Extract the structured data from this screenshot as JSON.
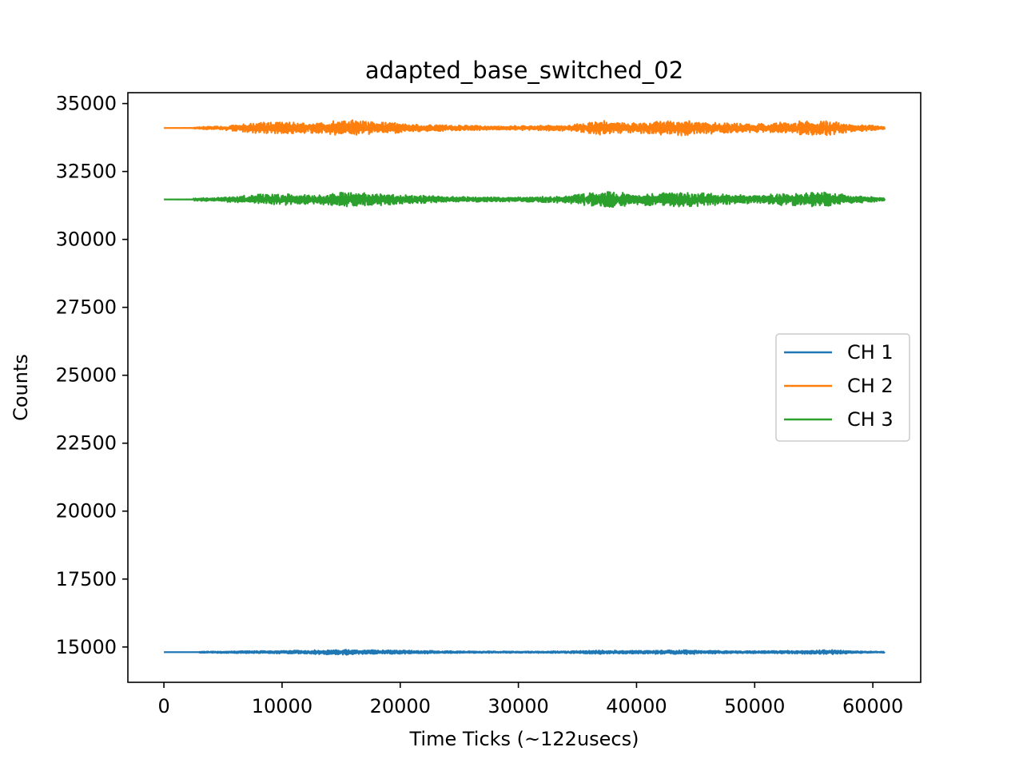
{
  "chart_data": {
    "type": "line",
    "title": "adapted_base_switched_02",
    "xlabel": "Time Ticks (~122usecs)",
    "ylabel": "Counts",
    "xlim": [
      -3050,
      64050
    ],
    "ylim": [
      13700,
      35400
    ],
    "xticks": [
      0,
      10000,
      20000,
      30000,
      40000,
      50000,
      60000
    ],
    "yticks": [
      15000,
      17500,
      20000,
      22500,
      25000,
      27500,
      30000,
      32500,
      35000
    ],
    "grid": false,
    "legend_position": "center-right",
    "series": [
      {
        "name": "CH 1",
        "color": "#1f77b4",
        "baseline": 14810,
        "x_range": [
          0,
          61000
        ],
        "quiet_until": 3000,
        "envelope": [
          [
            0,
            5
          ],
          [
            3000,
            20
          ],
          [
            8000,
            40
          ],
          [
            10000,
            45
          ],
          [
            15500,
            80
          ],
          [
            16500,
            70
          ],
          [
            20000,
            55
          ],
          [
            25000,
            30
          ],
          [
            30000,
            25
          ],
          [
            34000,
            30
          ],
          [
            37000,
            60
          ],
          [
            40000,
            45
          ],
          [
            44000,
            70
          ],
          [
            48000,
            35
          ],
          [
            52000,
            40
          ],
          [
            55000,
            60
          ],
          [
            56500,
            70
          ],
          [
            58000,
            40
          ],
          [
            61000,
            20
          ]
        ]
      },
      {
        "name": "CH 2",
        "color": "#ff7f0e",
        "baseline": 34100,
        "x_range": [
          0,
          61000
        ],
        "quiet_until": 2500,
        "envelope": [
          [
            0,
            5
          ],
          [
            2500,
            30
          ],
          [
            5000,
            60
          ],
          [
            8000,
            170
          ],
          [
            10000,
            190
          ],
          [
            13000,
            160
          ],
          [
            15500,
            260
          ],
          [
            16500,
            220
          ],
          [
            20000,
            150
          ],
          [
            24000,
            90
          ],
          [
            28000,
            60
          ],
          [
            30000,
            70
          ],
          [
            34000,
            90
          ],
          [
            37000,
            230
          ],
          [
            40000,
            160
          ],
          [
            44000,
            260
          ],
          [
            46000,
            200
          ],
          [
            50000,
            130
          ],
          [
            53000,
            190
          ],
          [
            56000,
            250
          ],
          [
            58000,
            130
          ],
          [
            61000,
            50
          ]
        ]
      },
      {
        "name": "CH 3",
        "color": "#2ca02c",
        "baseline": 31470,
        "x_range": [
          0,
          61000
        ],
        "quiet_until": 2500,
        "envelope": [
          [
            0,
            5
          ],
          [
            2500,
            40
          ],
          [
            5000,
            70
          ],
          [
            8000,
            160
          ],
          [
            10000,
            180
          ],
          [
            13000,
            150
          ],
          [
            15500,
            260
          ],
          [
            16500,
            220
          ],
          [
            20000,
            150
          ],
          [
            24000,
            90
          ],
          [
            28000,
            70
          ],
          [
            30000,
            70
          ],
          [
            34000,
            110
          ],
          [
            37500,
            260
          ],
          [
            40000,
            170
          ],
          [
            44000,
            250
          ],
          [
            46000,
            190
          ],
          [
            50000,
            130
          ],
          [
            53000,
            200
          ],
          [
            56000,
            230
          ],
          [
            58000,
            130
          ],
          [
            61000,
            50
          ]
        ]
      }
    ]
  }
}
